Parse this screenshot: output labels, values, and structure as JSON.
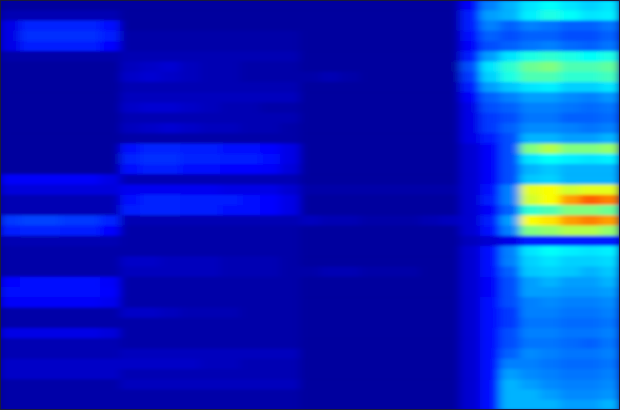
{
  "chart_data": {
    "type": "heatmap",
    "zlim": [
      0,
      1
    ],
    "values": [
      [
        0.03,
        0.03,
        0.03,
        0.03,
        0.03,
        0.03,
        0.03,
        0.03,
        0.03,
        0.03,
        0.03,
        0.03,
        0.03,
        0.03,
        0.03,
        0.03,
        0.03,
        0.03,
        0.03,
        0.03,
        0.03,
        0.03,
        0.03,
        0.12,
        0.25,
        0.3,
        0.35,
        0.38,
        0.35,
        0.33,
        0.35
      ],
      [
        0.05,
        0.05,
        0.05,
        0.05,
        0.05,
        0.05,
        0.03,
        0.03,
        0.03,
        0.03,
        0.03,
        0.03,
        0.03,
        0.03,
        0.03,
        0.03,
        0.03,
        0.03,
        0.03,
        0.03,
        0.03,
        0.03,
        0.03,
        0.15,
        0.28,
        0.3,
        0.36,
        0.4,
        0.38,
        0.35,
        0.36
      ],
      [
        0.1,
        0.16,
        0.16,
        0.16,
        0.16,
        0.14,
        0.03,
        0.03,
        0.03,
        0.03,
        0.03,
        0.03,
        0.03,
        0.03,
        0.03,
        0.03,
        0.03,
        0.03,
        0.03,
        0.03,
        0.03,
        0.03,
        0.03,
        0.15,
        0.25,
        0.22,
        0.25,
        0.24,
        0.22,
        0.22,
        0.24
      ],
      [
        0.1,
        0.17,
        0.17,
        0.17,
        0.17,
        0.15,
        0.04,
        0.04,
        0.04,
        0.04,
        0.04,
        0.04,
        0.04,
        0.04,
        0.04,
        0.03,
        0.03,
        0.03,
        0.03,
        0.03,
        0.03,
        0.03,
        0.03,
        0.14,
        0.22,
        0.2,
        0.22,
        0.22,
        0.2,
        0.2,
        0.22
      ],
      [
        0.1,
        0.15,
        0.15,
        0.15,
        0.15,
        0.13,
        0.04,
        0.04,
        0.04,
        0.04,
        0.04,
        0.04,
        0.04,
        0.04,
        0.04,
        0.03,
        0.03,
        0.03,
        0.03,
        0.03,
        0.03,
        0.03,
        0.03,
        0.12,
        0.2,
        0.22,
        0.24,
        0.25,
        0.23,
        0.22,
        0.24
      ],
      [
        0.04,
        0.04,
        0.04,
        0.04,
        0.04,
        0.04,
        0.05,
        0.05,
        0.05,
        0.05,
        0.05,
        0.05,
        0.05,
        0.05,
        0.05,
        0.03,
        0.03,
        0.03,
        0.03,
        0.03,
        0.03,
        0.03,
        0.03,
        0.15,
        0.28,
        0.35,
        0.4,
        0.42,
        0.4,
        0.38,
        0.4
      ],
      [
        0.03,
        0.03,
        0.03,
        0.03,
        0.03,
        0.03,
        0.06,
        0.07,
        0.08,
        0.06,
        0.05,
        0.05,
        0.04,
        0.04,
        0.04,
        0.03,
        0.03,
        0.03,
        0.03,
        0.03,
        0.03,
        0.03,
        0.03,
        0.2,
        0.35,
        0.42,
        0.48,
        0.5,
        0.45,
        0.45,
        0.47
      ],
      [
        0.03,
        0.03,
        0.03,
        0.03,
        0.03,
        0.03,
        0.07,
        0.08,
        0.07,
        0.06,
        0.05,
        0.05,
        0.04,
        0.04,
        0.04,
        0.04,
        0.05,
        0.04,
        0.03,
        0.03,
        0.03,
        0.03,
        0.03,
        0.18,
        0.33,
        0.4,
        0.45,
        0.45,
        0.42,
        0.42,
        0.44
      ],
      [
        0.03,
        0.03,
        0.03,
        0.03,
        0.03,
        0.03,
        0.05,
        0.05,
        0.05,
        0.05,
        0.05,
        0.05,
        0.05,
        0.05,
        0.05,
        0.03,
        0.03,
        0.03,
        0.03,
        0.03,
        0.03,
        0.03,
        0.03,
        0.15,
        0.28,
        0.32,
        0.35,
        0.36,
        0.33,
        0.33,
        0.35
      ],
      [
        0.03,
        0.03,
        0.03,
        0.03,
        0.03,
        0.03,
        0.06,
        0.06,
        0.06,
        0.06,
        0.06,
        0.06,
        0.06,
        0.06,
        0.06,
        0.03,
        0.03,
        0.03,
        0.03,
        0.03,
        0.03,
        0.03,
        0.03,
        0.12,
        0.22,
        0.25,
        0.28,
        0.28,
        0.26,
        0.25,
        0.27
      ],
      [
        0.03,
        0.03,
        0.03,
        0.03,
        0.03,
        0.03,
        0.07,
        0.08,
        0.08,
        0.07,
        0.06,
        0.05,
        0.05,
        0.04,
        0.04,
        0.03,
        0.03,
        0.03,
        0.03,
        0.03,
        0.03,
        0.03,
        0.03,
        0.1,
        0.2,
        0.22,
        0.25,
        0.25,
        0.24,
        0.23,
        0.24
      ],
      [
        0.03,
        0.03,
        0.03,
        0.03,
        0.03,
        0.03,
        0.05,
        0.05,
        0.05,
        0.05,
        0.05,
        0.05,
        0.05,
        0.05,
        0.05,
        0.03,
        0.03,
        0.03,
        0.03,
        0.03,
        0.03,
        0.03,
        0.03,
        0.1,
        0.18,
        0.2,
        0.24,
        0.24,
        0.22,
        0.22,
        0.23
      ],
      [
        0.03,
        0.03,
        0.03,
        0.03,
        0.03,
        0.03,
        0.06,
        0.07,
        0.08,
        0.07,
        0.06,
        0.06,
        0.05,
        0.05,
        0.04,
        0.03,
        0.03,
        0.03,
        0.03,
        0.03,
        0.03,
        0.03,
        0.03,
        0.1,
        0.18,
        0.22,
        0.26,
        0.26,
        0.25,
        0.24,
        0.25
      ],
      [
        0.03,
        0.03,
        0.03,
        0.03,
        0.03,
        0.03,
        0.04,
        0.04,
        0.04,
        0.04,
        0.04,
        0.04,
        0.04,
        0.04,
        0.04,
        0.03,
        0.03,
        0.03,
        0.03,
        0.03,
        0.03,
        0.03,
        0.03,
        0.1,
        0.15,
        0.2,
        0.3,
        0.3,
        0.28,
        0.28,
        0.3
      ],
      [
        0.03,
        0.03,
        0.03,
        0.03,
        0.03,
        0.03,
        0.14,
        0.16,
        0.16,
        0.15,
        0.15,
        0.14,
        0.14,
        0.13,
        0.1,
        0.03,
        0.03,
        0.03,
        0.03,
        0.03,
        0.03,
        0.03,
        0.03,
        0.08,
        0.12,
        0.2,
        0.5,
        0.55,
        0.5,
        0.5,
        0.52
      ],
      [
        0.03,
        0.03,
        0.03,
        0.03,
        0.03,
        0.03,
        0.16,
        0.17,
        0.17,
        0.16,
        0.16,
        0.15,
        0.15,
        0.14,
        0.1,
        0.03,
        0.03,
        0.03,
        0.03,
        0.03,
        0.03,
        0.03,
        0.03,
        0.08,
        0.12,
        0.2,
        0.35,
        0.38,
        0.36,
        0.35,
        0.36
      ],
      [
        0.03,
        0.03,
        0.03,
        0.03,
        0.03,
        0.03,
        0.14,
        0.15,
        0.15,
        0.14,
        0.14,
        0.13,
        0.13,
        0.12,
        0.09,
        0.03,
        0.03,
        0.03,
        0.03,
        0.03,
        0.03,
        0.03,
        0.03,
        0.08,
        0.12,
        0.2,
        0.3,
        0.32,
        0.3,
        0.3,
        0.3
      ],
      [
        0.12,
        0.12,
        0.12,
        0.12,
        0.12,
        0.1,
        0.05,
        0.05,
        0.05,
        0.05,
        0.05,
        0.05,
        0.05,
        0.05,
        0.05,
        0.03,
        0.03,
        0.03,
        0.03,
        0.03,
        0.03,
        0.03,
        0.03,
        0.08,
        0.12,
        0.2,
        0.32,
        0.33,
        0.3,
        0.3,
        0.3
      ],
      [
        0.09,
        0.09,
        0.09,
        0.09,
        0.09,
        0.09,
        0.11,
        0.11,
        0.11,
        0.11,
        0.11,
        0.1,
        0.1,
        0.1,
        0.08,
        0.04,
        0.04,
        0.04,
        0.04,
        0.04,
        0.04,
        0.04,
        0.04,
        0.08,
        0.14,
        0.25,
        0.6,
        0.62,
        0.58,
        0.6,
        0.6
      ],
      [
        0.05,
        0.05,
        0.05,
        0.05,
        0.05,
        0.05,
        0.14,
        0.16,
        0.16,
        0.15,
        0.15,
        0.15,
        0.14,
        0.13,
        0.1,
        0.03,
        0.03,
        0.03,
        0.03,
        0.03,
        0.03,
        0.03,
        0.03,
        0.08,
        0.15,
        0.25,
        0.58,
        0.62,
        0.72,
        0.78,
        0.75
      ],
      [
        0.05,
        0.05,
        0.05,
        0.05,
        0.05,
        0.05,
        0.15,
        0.16,
        0.16,
        0.15,
        0.15,
        0.14,
        0.14,
        0.13,
        0.1,
        0.03,
        0.03,
        0.03,
        0.03,
        0.03,
        0.03,
        0.03,
        0.03,
        0.08,
        0.12,
        0.22,
        0.42,
        0.45,
        0.5,
        0.5,
        0.48
      ],
      [
        0.18,
        0.19,
        0.19,
        0.18,
        0.18,
        0.16,
        0.05,
        0.05,
        0.05,
        0.05,
        0.05,
        0.05,
        0.05,
        0.05,
        0.05,
        0.06,
        0.05,
        0.05,
        0.04,
        0.04,
        0.04,
        0.05,
        0.06,
        0.08,
        0.15,
        0.28,
        0.62,
        0.65,
        0.72,
        0.75,
        0.72
      ],
      [
        0.15,
        0.16,
        0.16,
        0.15,
        0.15,
        0.13,
        0.04,
        0.04,
        0.04,
        0.04,
        0.04,
        0.04,
        0.04,
        0.04,
        0.04,
        0.03,
        0.03,
        0.03,
        0.03,
        0.03,
        0.03,
        0.03,
        0.03,
        0.08,
        0.14,
        0.25,
        0.5,
        0.52,
        0.55,
        0.55,
        0.52
      ],
      [
        0.05,
        0.05,
        0.05,
        0.05,
        0.05,
        0.05,
        0.04,
        0.04,
        0.04,
        0.04,
        0.04,
        0.04,
        0.04,
        0.04,
        0.04,
        0.03,
        0.03,
        0.03,
        0.03,
        0.03,
        0.03,
        0.03,
        0.03,
        0.06,
        0.08,
        0.1,
        0.15,
        0.15,
        0.15,
        0.15,
        0.15
      ],
      [
        0.04,
        0.04,
        0.04,
        0.04,
        0.04,
        0.04,
        0.04,
        0.04,
        0.04,
        0.04,
        0.04,
        0.04,
        0.04,
        0.04,
        0.04,
        0.03,
        0.03,
        0.03,
        0.03,
        0.03,
        0.03,
        0.03,
        0.03,
        0.08,
        0.14,
        0.25,
        0.35,
        0.38,
        0.36,
        0.35,
        0.36
      ],
      [
        0.04,
        0.04,
        0.04,
        0.04,
        0.04,
        0.04,
        0.07,
        0.07,
        0.06,
        0.06,
        0.06,
        0.05,
        0.05,
        0.05,
        0.04,
        0.03,
        0.03,
        0.03,
        0.03,
        0.03,
        0.03,
        0.03,
        0.03,
        0.08,
        0.14,
        0.25,
        0.33,
        0.35,
        0.33,
        0.33,
        0.34
      ],
      [
        0.04,
        0.04,
        0.04,
        0.04,
        0.04,
        0.04,
        0.06,
        0.06,
        0.06,
        0.06,
        0.06,
        0.05,
        0.05,
        0.05,
        0.04,
        0.04,
        0.05,
        0.05,
        0.04,
        0.04,
        0.04,
        0.03,
        0.03,
        0.08,
        0.14,
        0.22,
        0.32,
        0.33,
        0.32,
        0.3,
        0.32
      ],
      [
        0.13,
        0.14,
        0.14,
        0.14,
        0.14,
        0.12,
        0.04,
        0.04,
        0.04,
        0.04,
        0.04,
        0.04,
        0.04,
        0.04,
        0.04,
        0.03,
        0.03,
        0.03,
        0.03,
        0.03,
        0.03,
        0.03,
        0.03,
        0.08,
        0.12,
        0.2,
        0.28,
        0.3,
        0.28,
        0.28,
        0.3
      ],
      [
        0.14,
        0.14,
        0.14,
        0.14,
        0.14,
        0.13,
        0.04,
        0.04,
        0.04,
        0.04,
        0.04,
        0.04,
        0.04,
        0.04,
        0.04,
        0.03,
        0.03,
        0.03,
        0.03,
        0.03,
        0.03,
        0.03,
        0.03,
        0.08,
        0.12,
        0.2,
        0.28,
        0.28,
        0.27,
        0.27,
        0.28
      ],
      [
        0.12,
        0.12,
        0.12,
        0.12,
        0.12,
        0.11,
        0.04,
        0.04,
        0.04,
        0.04,
        0.04,
        0.04,
        0.04,
        0.04,
        0.04,
        0.03,
        0.03,
        0.03,
        0.03,
        0.03,
        0.03,
        0.03,
        0.03,
        0.08,
        0.14,
        0.2,
        0.25,
        0.26,
        0.25,
        0.25,
        0.26
      ],
      [
        0.04,
        0.04,
        0.04,
        0.04,
        0.04,
        0.04,
        0.07,
        0.07,
        0.06,
        0.05,
        0.05,
        0.05,
        0.04,
        0.04,
        0.04,
        0.03,
        0.03,
        0.03,
        0.03,
        0.03,
        0.03,
        0.03,
        0.03,
        0.08,
        0.14,
        0.18,
        0.25,
        0.25,
        0.24,
        0.24,
        0.25
      ],
      [
        0.04,
        0.04,
        0.04,
        0.04,
        0.04,
        0.04,
        0.04,
        0.04,
        0.04,
        0.04,
        0.04,
        0.04,
        0.04,
        0.04,
        0.04,
        0.03,
        0.03,
        0.03,
        0.03,
        0.03,
        0.03,
        0.03,
        0.03,
        0.08,
        0.14,
        0.18,
        0.24,
        0.24,
        0.23,
        0.23,
        0.24
      ],
      [
        0.1,
        0.1,
        0.1,
        0.1,
        0.1,
        0.09,
        0.04,
        0.04,
        0.04,
        0.04,
        0.04,
        0.04,
        0.04,
        0.04,
        0.04,
        0.03,
        0.03,
        0.03,
        0.03,
        0.03,
        0.03,
        0.03,
        0.03,
        0.08,
        0.14,
        0.2,
        0.25,
        0.25,
        0.24,
        0.24,
        0.25
      ],
      [
        0.05,
        0.05,
        0.05,
        0.05,
        0.05,
        0.05,
        0.04,
        0.04,
        0.04,
        0.04,
        0.04,
        0.04,
        0.04,
        0.04,
        0.04,
        0.03,
        0.03,
        0.03,
        0.03,
        0.03,
        0.03,
        0.03,
        0.03,
        0.08,
        0.14,
        0.2,
        0.24,
        0.24,
        0.23,
        0.22,
        0.24
      ],
      [
        0.05,
        0.05,
        0.05,
        0.05,
        0.05,
        0.05,
        0.06,
        0.06,
        0.06,
        0.06,
        0.06,
        0.06,
        0.06,
        0.06,
        0.06,
        0.03,
        0.03,
        0.03,
        0.03,
        0.03,
        0.03,
        0.03,
        0.03,
        0.08,
        0.14,
        0.22,
        0.26,
        0.25,
        0.24,
        0.24,
        0.25
      ],
      [
        0.07,
        0.07,
        0.07,
        0.07,
        0.07,
        0.07,
        0.07,
        0.07,
        0.07,
        0.07,
        0.06,
        0.06,
        0.05,
        0.05,
        0.05,
        0.03,
        0.03,
        0.03,
        0.03,
        0.03,
        0.03,
        0.03,
        0.03,
        0.08,
        0.14,
        0.25,
        0.25,
        0.24,
        0.23,
        0.23,
        0.24
      ],
      [
        0.07,
        0.07,
        0.07,
        0.07,
        0.07,
        0.07,
        0.05,
        0.05,
        0.05,
        0.05,
        0.05,
        0.05,
        0.05,
        0.05,
        0.05,
        0.03,
        0.03,
        0.03,
        0.03,
        0.03,
        0.03,
        0.03,
        0.03,
        0.08,
        0.14,
        0.28,
        0.26,
        0.25,
        0.24,
        0.24,
        0.25
      ],
      [
        0.04,
        0.04,
        0.04,
        0.04,
        0.04,
        0.04,
        0.06,
        0.06,
        0.06,
        0.06,
        0.06,
        0.06,
        0.06,
        0.06,
        0.06,
        0.03,
        0.03,
        0.03,
        0.03,
        0.03,
        0.03,
        0.03,
        0.03,
        0.08,
        0.14,
        0.3,
        0.28,
        0.26,
        0.25,
        0.25,
        0.26
      ],
      [
        0.04,
        0.04,
        0.04,
        0.04,
        0.04,
        0.04,
        0.04,
        0.04,
        0.04,
        0.04,
        0.04,
        0.04,
        0.04,
        0.04,
        0.04,
        0.03,
        0.03,
        0.03,
        0.03,
        0.03,
        0.03,
        0.03,
        0.03,
        0.08,
        0.14,
        0.3,
        0.3,
        0.28,
        0.26,
        0.26,
        0.27
      ],
      [
        0.04,
        0.04,
        0.04,
        0.04,
        0.04,
        0.04,
        0.04,
        0.04,
        0.04,
        0.04,
        0.04,
        0.04,
        0.04,
        0.04,
        0.04,
        0.03,
        0.03,
        0.03,
        0.03,
        0.03,
        0.03,
        0.03,
        0.03,
        0.08,
        0.14,
        0.3,
        0.3,
        0.3,
        0.28,
        0.28,
        0.3
      ]
    ]
  }
}
